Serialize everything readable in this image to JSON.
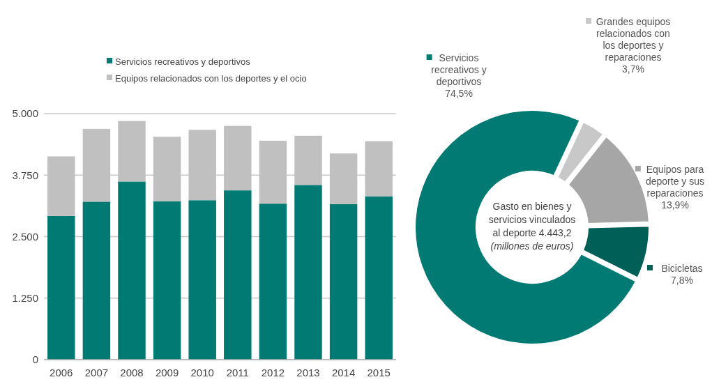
{
  "chart_data": [
    {
      "type": "bar",
      "stacked": true,
      "categories": [
        "2006",
        "2007",
        "2008",
        "2009",
        "2010",
        "2011",
        "2012",
        "2013",
        "2014",
        "2015"
      ],
      "series": [
        {
          "name": "Servicios recreativos y deportivos",
          "color": "#007a73",
          "values": [
            2920,
            3210,
            3620,
            3220,
            3240,
            3440,
            3170,
            3550,
            3160,
            3320
          ]
        },
        {
          "name": "Equipos relacionados con los deportes y el ocio",
          "color": "#c0c0c0",
          "values": [
            1210,
            1480,
            1230,
            1310,
            1430,
            1310,
            1280,
            1000,
            1030,
            1120
          ]
        }
      ],
      "ylim": [
        0,
        5000
      ],
      "yticks": [
        {
          "value": 0,
          "label": "0"
        },
        {
          "value": 1250,
          "label": "1.250"
        },
        {
          "value": 2500,
          "label": "2.500"
        },
        {
          "value": 3750,
          "label": "3.750"
        },
        {
          "value": 5000,
          "label": "5.000"
        }
      ],
      "grid": "y",
      "legend": "top"
    },
    {
      "type": "donut",
      "categories": [
        "Grandes equipos relacionados con los deportes y reparaciones",
        "Equipos para deporte y sus reparaciones",
        "Bicicletas",
        "Servicios recreativos y deportivos"
      ],
      "values": [
        3.7,
        13.9,
        7.8,
        74.5
      ],
      "colors": [
        "#c8c8c8",
        "#a6a6a6",
        "#006058",
        "#007a73"
      ],
      "value_labels": [
        "3,7%",
        "13,9%",
        "7,8%",
        "74,5%"
      ],
      "legend": "right",
      "annotations": [
        "Gasto en bienes y servicios vinculados al deporte 4.443,2",
        "(millones de euros)"
      ]
    }
  ]
}
